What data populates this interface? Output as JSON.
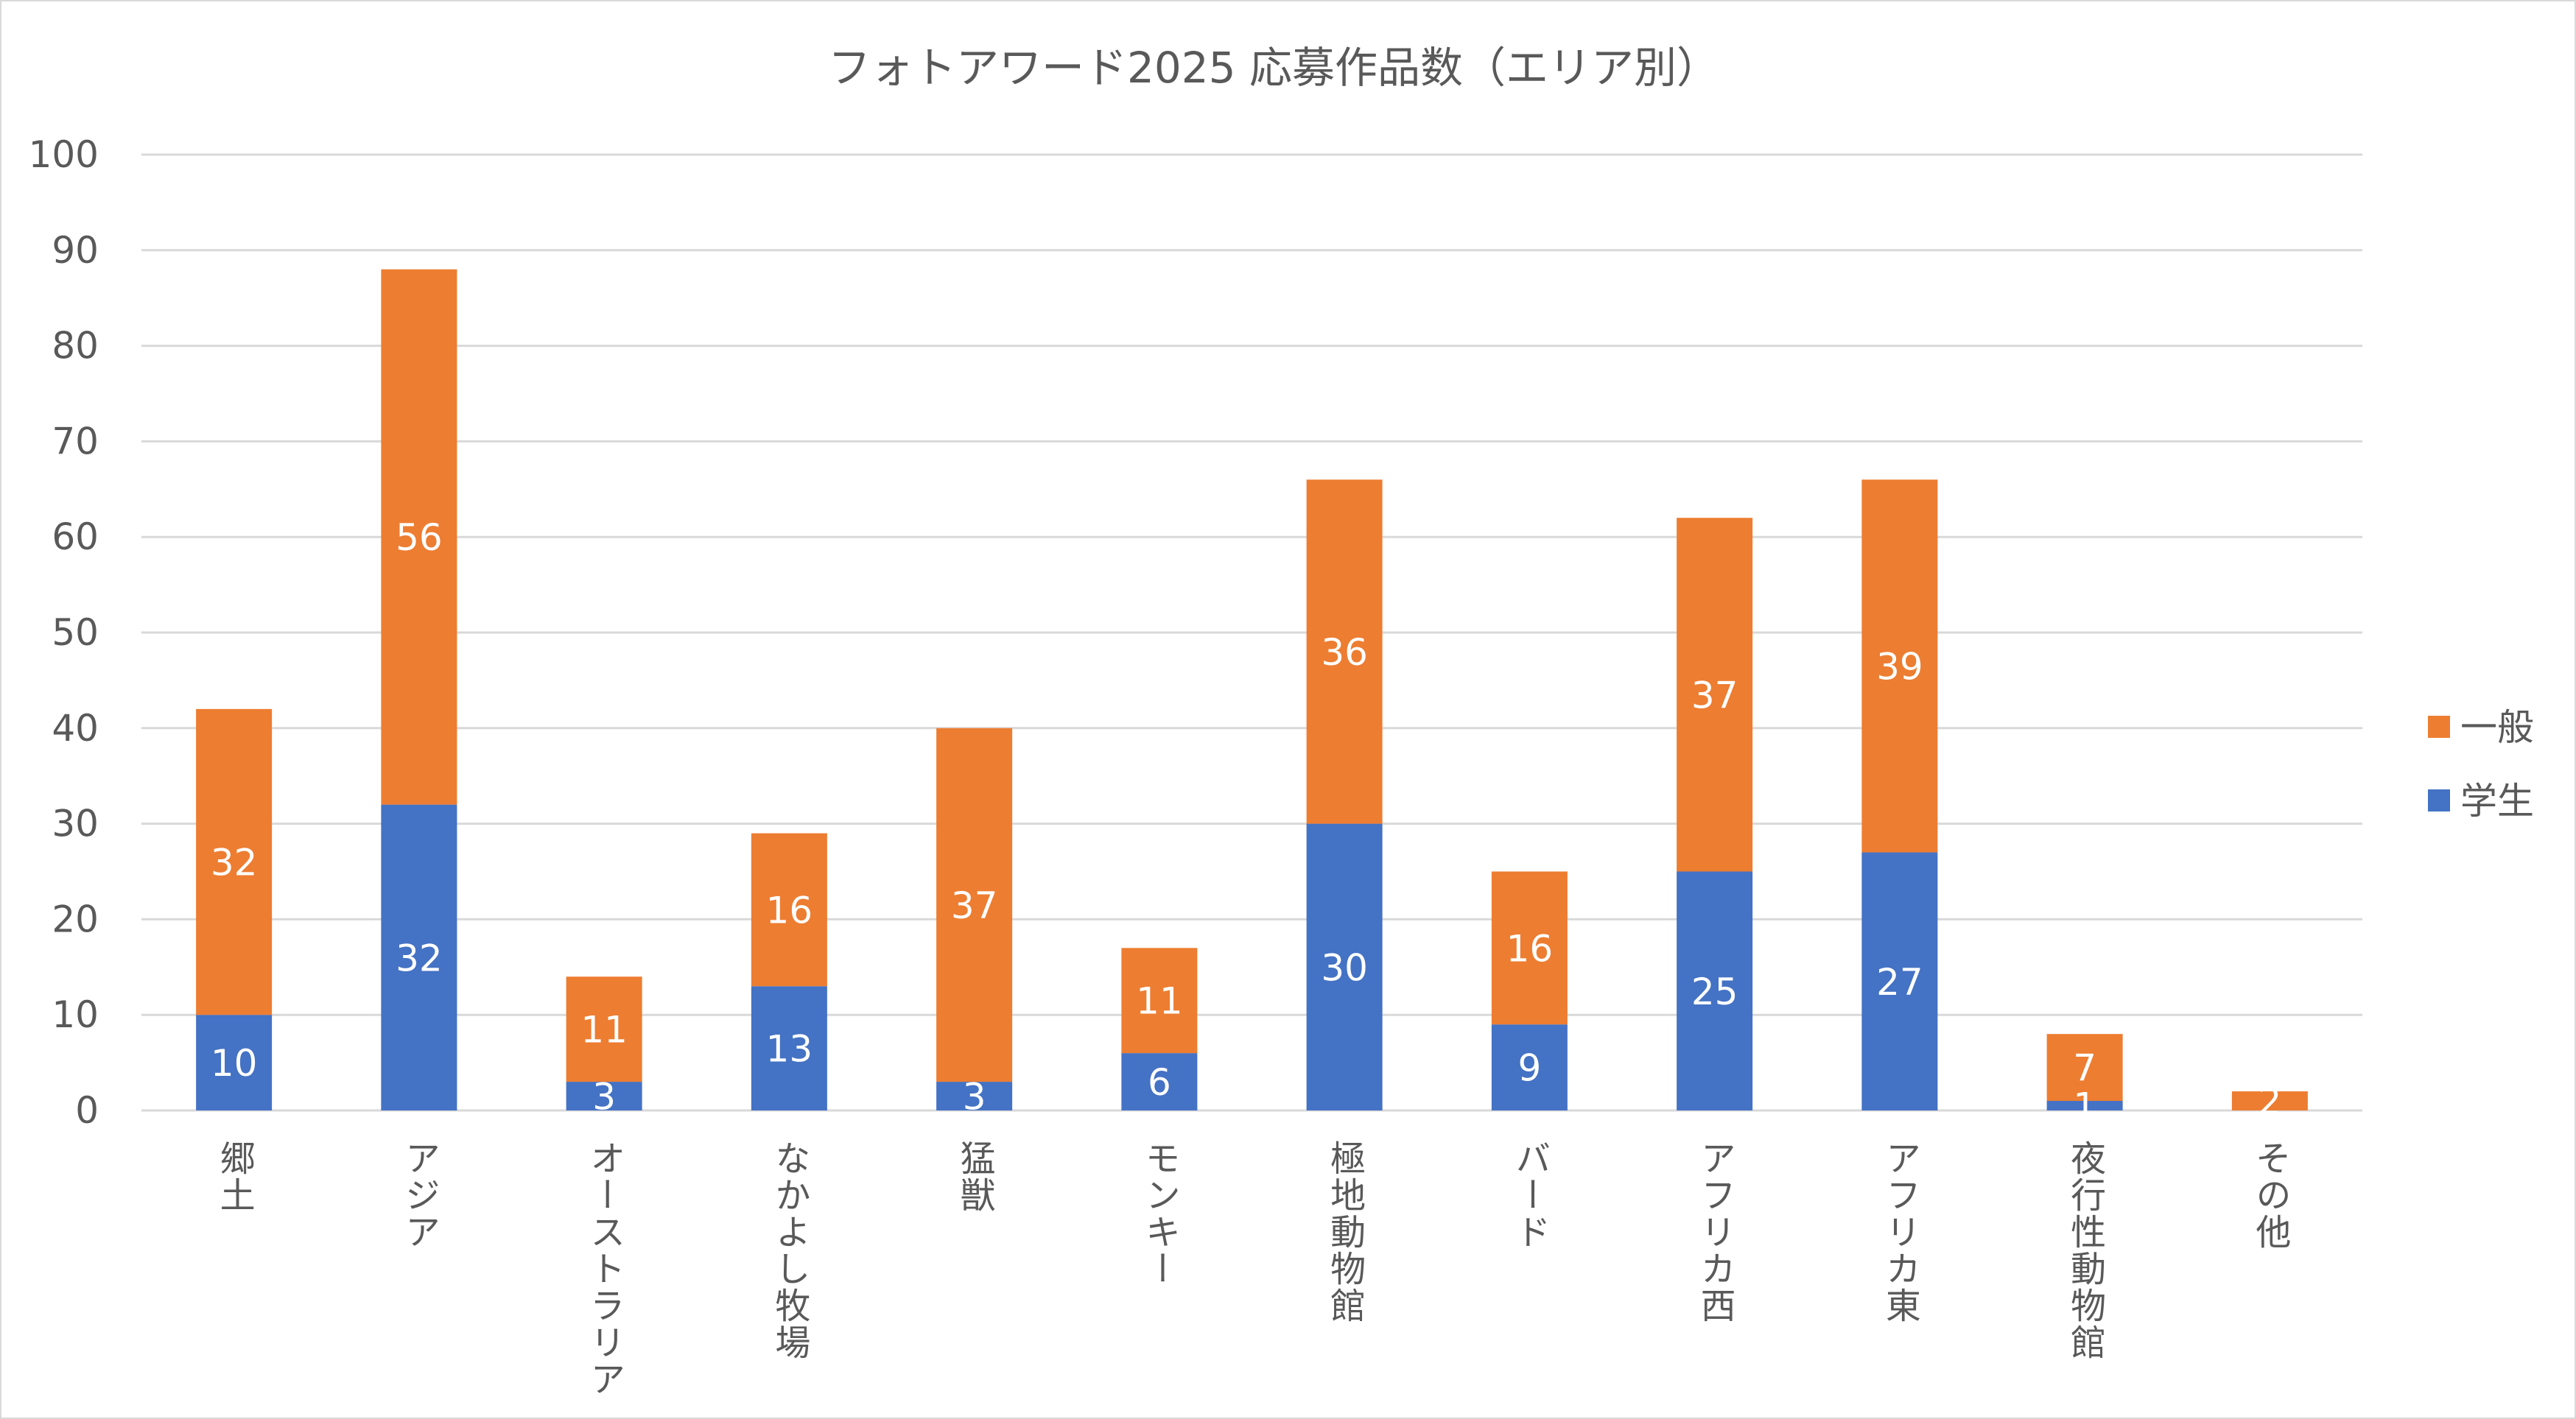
{
  "chart_data": {
    "type": "bar",
    "stacked": true,
    "title": "フォトアワード2025 応募作品数（エリア別）",
    "xlabel": "",
    "ylabel": "",
    "ylim": [
      0,
      100
    ],
    "yticks": [
      0,
      10,
      20,
      30,
      40,
      50,
      60,
      70,
      80,
      90,
      100
    ],
    "grid": true,
    "legend": "right",
    "categories": [
      "郷土",
      "アジア",
      "オーストラリア",
      "なかよし牧場",
      "猛獣",
      "モンキー",
      "極地動物館",
      "バード",
      "アフリカ西",
      "アフリカ東",
      "夜行性動物館",
      "その他"
    ],
    "series": [
      {
        "name": "学生",
        "color": "#4472C4",
        "values": [
          10,
          32,
          3,
          13,
          3,
          6,
          30,
          9,
          25,
          27,
          1,
          0
        ]
      },
      {
        "name": "一般",
        "color": "#ED7D31",
        "values": [
          32,
          56,
          11,
          16,
          37,
          11,
          36,
          16,
          37,
          39,
          7,
          2
        ]
      }
    ]
  }
}
